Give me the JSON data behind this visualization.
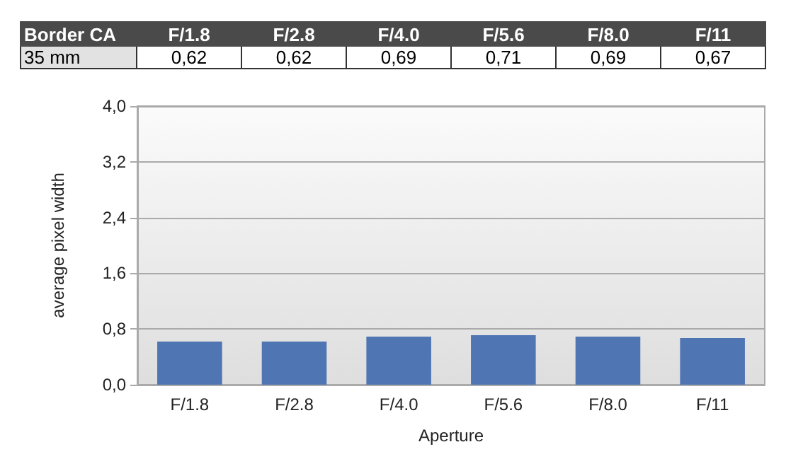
{
  "chart_data": {
    "type": "bar",
    "title": "Border CA",
    "xlabel": "Aperture",
    "ylabel": "average pixel width",
    "categories": [
      "F/1.8",
      "F/2.8",
      "F/4.0",
      "F/5.6",
      "F/8.0",
      "F/11"
    ],
    "series": [
      {
        "name": "35 mm",
        "color": "#4f75b3",
        "values": [
          0.62,
          0.62,
          0.69,
          0.71,
          0.69,
          0.67
        ],
        "value_labels": [
          "0,62",
          "0,62",
          "0,69",
          "0,71",
          "0,69",
          "0,67"
        ]
      }
    ],
    "ylim": [
      0,
      4
    ],
    "yticks": [
      {
        "value": 0,
        "label": "0,0"
      },
      {
        "value": 0.8,
        "label": "0,8"
      },
      {
        "value": 1.6,
        "label": "1,6"
      },
      {
        "value": 2.4,
        "label": "2,4"
      },
      {
        "value": 3.2,
        "label": "3,2"
      },
      {
        "value": 4,
        "label": "4,0"
      }
    ],
    "grid": "y"
  }
}
